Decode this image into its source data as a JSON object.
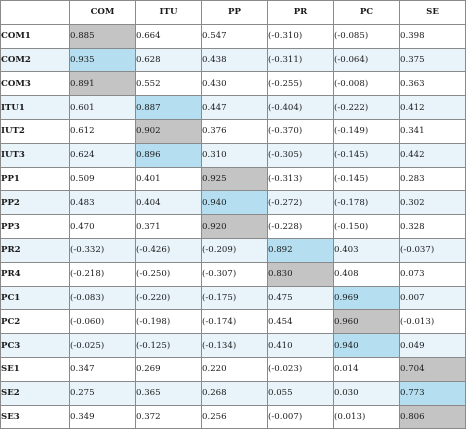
{
  "columns": [
    "COM",
    "ITU",
    "PP",
    "PR",
    "PC",
    "SE"
  ],
  "rows": [
    {
      "label": "COM1",
      "values": [
        "0.885",
        "0.664",
        "0.547",
        "(-0.310)",
        "(-0.085)",
        "0.398"
      ],
      "highlight": {
        "col": 0,
        "color": "grey"
      }
    },
    {
      "label": "COM2",
      "values": [
        "0.935",
        "0.628",
        "0.438",
        "(-0.311)",
        "(-0.064)",
        "0.375"
      ],
      "highlight": {
        "col": 0,
        "color": "blue"
      }
    },
    {
      "label": "COM3",
      "values": [
        "0.891",
        "0.552",
        "0.430",
        "(-0.255)",
        "(-0.008)",
        "0.363"
      ],
      "highlight": {
        "col": 0,
        "color": "grey"
      }
    },
    {
      "label": "ITU1",
      "values": [
        "0.601",
        "0.887",
        "0.447",
        "(-0.404)",
        "(-0.222)",
        "0.412"
      ],
      "highlight": {
        "col": 1,
        "color": "blue"
      }
    },
    {
      "label": "IUT2",
      "values": [
        "0.612",
        "0.902",
        "0.376",
        "(-0.370)",
        "(-0.149)",
        "0.341"
      ],
      "highlight": {
        "col": 1,
        "color": "grey"
      }
    },
    {
      "label": "IUT3",
      "values": [
        "0.624",
        "0.896",
        "0.310",
        "(-0.305)",
        "(-0.145)",
        "0.442"
      ],
      "highlight": {
        "col": 1,
        "color": "blue"
      }
    },
    {
      "label": "PP1",
      "values": [
        "0.509",
        "0.401",
        "0.925",
        "(-0.313)",
        "(-0.145)",
        "0.283"
      ],
      "highlight": {
        "col": 2,
        "color": "grey"
      }
    },
    {
      "label": "PP2",
      "values": [
        "0.483",
        "0.404",
        "0.940",
        "(-0.272)",
        "(-0.178)",
        "0.302"
      ],
      "highlight": {
        "col": 2,
        "color": "blue"
      }
    },
    {
      "label": "PP3",
      "values": [
        "0.470",
        "0.371",
        "0.920",
        "(-0.228)",
        "(-0.150)",
        "0.328"
      ],
      "highlight": {
        "col": 2,
        "color": "grey"
      }
    },
    {
      "label": "PR2",
      "values": [
        "(-0.332)",
        "(-0.426)",
        "(-0.209)",
        "0.892",
        "0.403",
        "(-0.037)"
      ],
      "highlight": {
        "col": 3,
        "color": "blue"
      }
    },
    {
      "label": "PR4",
      "values": [
        "(-0.218)",
        "(-0.250)",
        "(-0.307)",
        "0.830",
        "0.408",
        "0.073"
      ],
      "highlight": {
        "col": 3,
        "color": "grey"
      }
    },
    {
      "label": "PC1",
      "values": [
        "(-0.083)",
        "(-0.220)",
        "(-0.175)",
        "0.475",
        "0.969",
        "0.007"
      ],
      "highlight": {
        "col": 4,
        "color": "blue"
      }
    },
    {
      "label": "PC2",
      "values": [
        "(-0.060)",
        "(-0.198)",
        "(-0.174)",
        "0.454",
        "0.960",
        "(-0.013)"
      ],
      "highlight": {
        "col": 4,
        "color": "grey"
      }
    },
    {
      "label": "PC3",
      "values": [
        "(-0.025)",
        "(-0.125)",
        "(-0.134)",
        "0.410",
        "0.940",
        "0.049"
      ],
      "highlight": {
        "col": 4,
        "color": "blue"
      }
    },
    {
      "label": "SE1",
      "values": [
        "0.347",
        "0.269",
        "0.220",
        "(-0.023)",
        "0.014",
        "0.704"
      ],
      "highlight": {
        "col": 5,
        "color": "grey"
      }
    },
    {
      "label": "SE2",
      "values": [
        "0.275",
        "0.365",
        "0.268",
        "0.055",
        "0.030",
        "0.773"
      ],
      "highlight": {
        "col": 5,
        "color": "blue"
      }
    },
    {
      "label": "SE3",
      "values": [
        "0.349",
        "0.372",
        "0.256",
        "(-0.007)",
        "(0.013)",
        "0.806"
      ],
      "highlight": {
        "col": 5,
        "color": "grey"
      }
    }
  ],
  "colors": {
    "highlight_blue": "#b5dff1",
    "highlight_grey": "#c4c4c4",
    "row_alt": "#e8f3fa",
    "border": "#8a8a8a"
  }
}
